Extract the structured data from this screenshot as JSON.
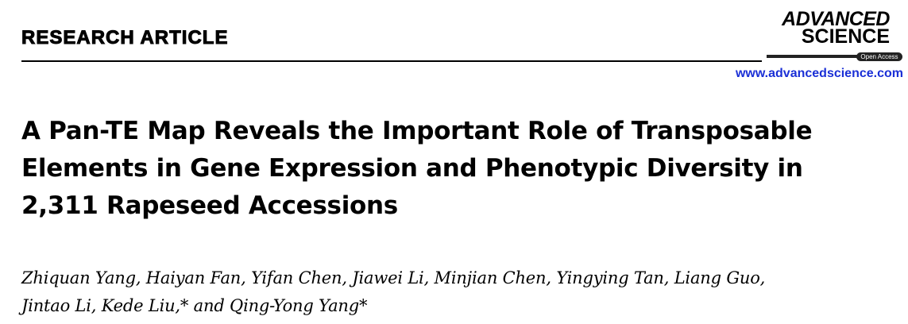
{
  "header": {
    "section_label": "RESEARCH ARTICLE",
    "journal_logo": {
      "line1": "ADVANCED",
      "line2": "SCIENCE",
      "badge": "Open Access"
    },
    "journal_url": "www.advancedscience.com",
    "colors": {
      "url": "#1a2fd6"
    }
  },
  "article": {
    "title_lines": [
      "A Pan-TE Map Reveals the Important Role of Transposable",
      "Elements in Gene Expression and Phenotypic Diversity in",
      "2,311 Rapeseed Accessions"
    ],
    "author_lines": [
      "Zhiquan Yang, Haiyan Fan, Yifan Chen, Jiawei Li, Minjian Chen, Yingying Tan, Liang Guo,",
      "Jintao Li, Kede Liu,* and Qing-Yong Yang*"
    ]
  }
}
